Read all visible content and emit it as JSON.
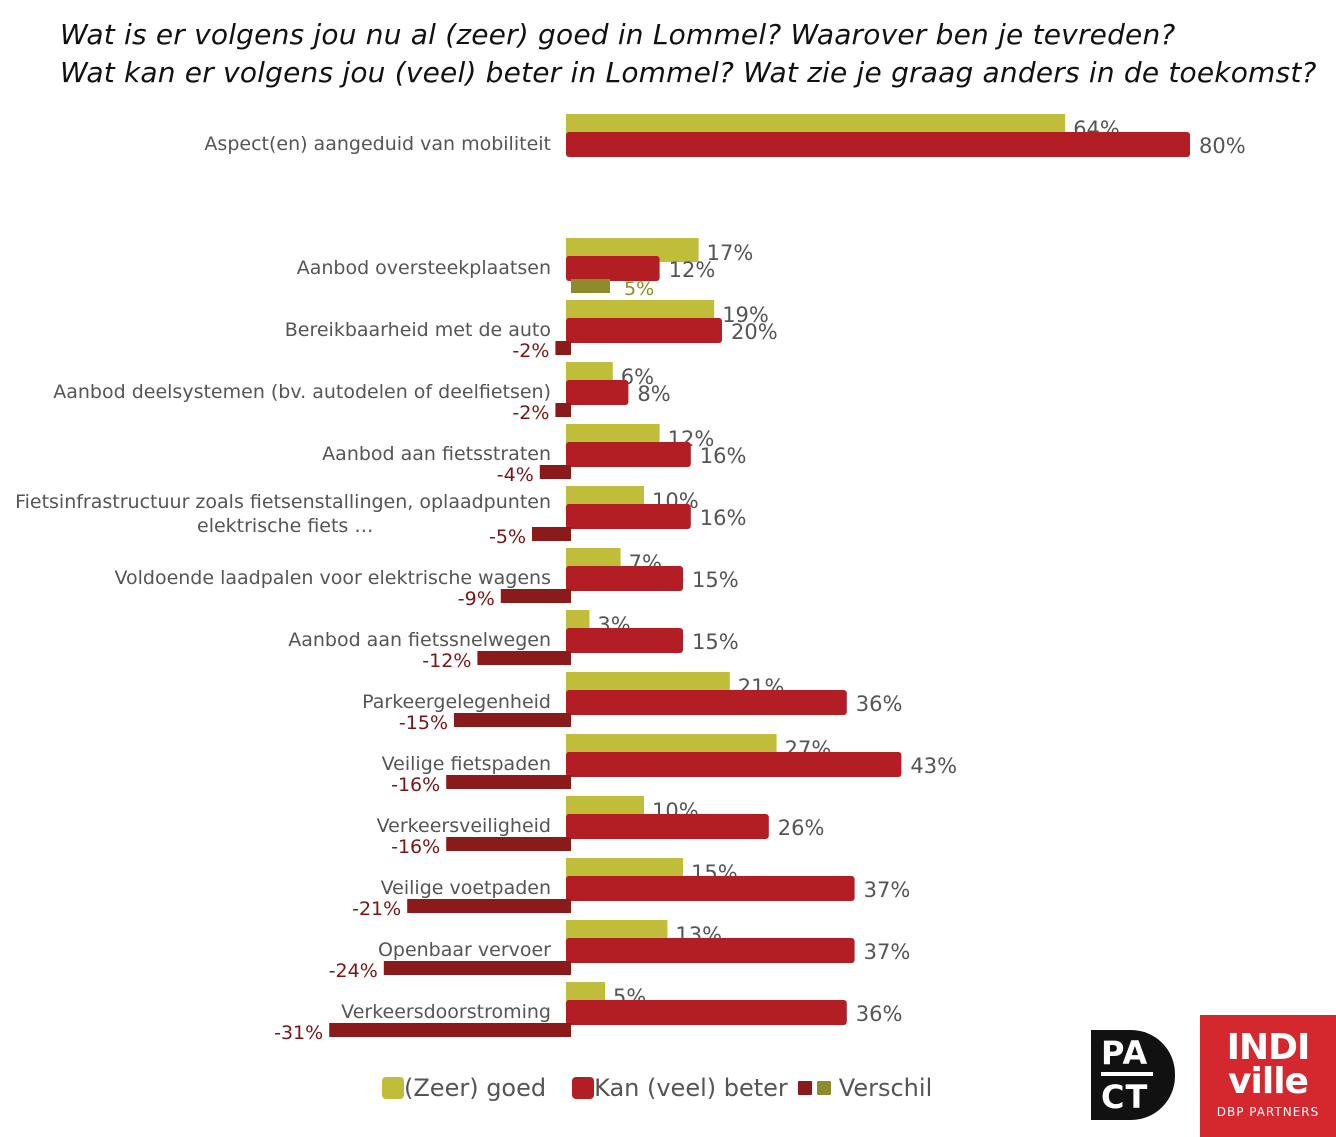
{
  "title_line1": "Wat is er volgens jou nu al (zeer) goed in Lommel? Waarover ben je tevreden?",
  "title_line2": "Wat kan er volgens jou (veel) beter in Lommel? Wat zie je graag anders in de toekomst?",
  "colors": {
    "goed": "#bfbd3a",
    "beter": "#b31e25",
    "verschil_neg": "#8b1a1a",
    "verschil_pos": "#8e8b2a",
    "label_text": "#555555",
    "value_text": "#555555",
    "diff_text": "#7a1515"
  },
  "legend": {
    "goed": "(Zeer) goed",
    "beter": "Kan (veel) beter",
    "verschil": "Verschil"
  },
  "logos": {
    "pact_line1": "PA",
    "pact_line2": "CT",
    "indiville_line1": "INDI",
    "indiville_line2": "ville",
    "indiville_sub": "DBP PARTNERS"
  },
  "chart_data": {
    "type": "bar",
    "orientation": "horizontal",
    "title": "Wat is er volgens jou nu al (zeer) goed in Lommel? Waarover ben je tevreden? Wat kan er volgens jou (veel) beter in Lommel? Wat zie je graag anders in de toekomst?",
    "categories": [
      [
        "Aspect(en) aangeduid van mobiliteit"
      ],
      [
        "Aanbod oversteekplaatsen"
      ],
      [
        "Bereikbaarheid met de auto"
      ],
      [
        "Aanbod deelsystemen (bv. autodelen of deelfietsen)"
      ],
      [
        "Aanbod aan fietsstraten"
      ],
      [
        "Fietsinfrastructuur zoals fietsenstallingen, oplaadpunten",
        "elektrische fiets …"
      ],
      [
        "Voldoende laadpalen voor elektrische wagens"
      ],
      [
        "Aanbod aan fietssnelwegen"
      ],
      [
        "Parkeergelegenheid"
      ],
      [
        "Veilige fietspaden"
      ],
      [
        "Verkeersveiligheid"
      ],
      [
        "Veilige voetpaden"
      ],
      [
        "Openbaar vervoer"
      ],
      [
        "Verkeersdoorstroming"
      ]
    ],
    "series": [
      {
        "name": "(Zeer) goed",
        "values": [
          64,
          17,
          19,
          6,
          12,
          10,
          7,
          3,
          21,
          27,
          10,
          15,
          13,
          5
        ],
        "labels": [
          "64%",
          "17%",
          "19%",
          "6%",
          "12%",
          "10%",
          "7%",
          "3%",
          "21%",
          "27%",
          "10%",
          "15%",
          "13%",
          "5%"
        ]
      },
      {
        "name": "Kan (veel) beter",
        "values": [
          80,
          12,
          20,
          8,
          16,
          16,
          15,
          15,
          36,
          43,
          26,
          37,
          37,
          36
        ],
        "labels": [
          "80%",
          "12%",
          "20%",
          "8%",
          "16%",
          "16%",
          "15%",
          "15%",
          "36%",
          "43%",
          "26%",
          "37%",
          "37%",
          "36%"
        ]
      },
      {
        "name": "Verschil",
        "values": [
          null,
          5,
          -2,
          -2,
          -4,
          -5,
          -9,
          -12,
          -15,
          -16,
          -16,
          -21,
          -24,
          -31
        ],
        "labels": [
          "",
          "5%",
          "-2%",
          "-2%",
          "-4%",
          "-5%",
          "-9%",
          "-12%",
          "-15%",
          "-16%",
          "-16%",
          "-21%",
          "-24%",
          "-31%"
        ]
      }
    ],
    "xlim": [
      -31,
      80
    ],
    "unit": "%",
    "grid": false,
    "legend_position": "bottom"
  }
}
